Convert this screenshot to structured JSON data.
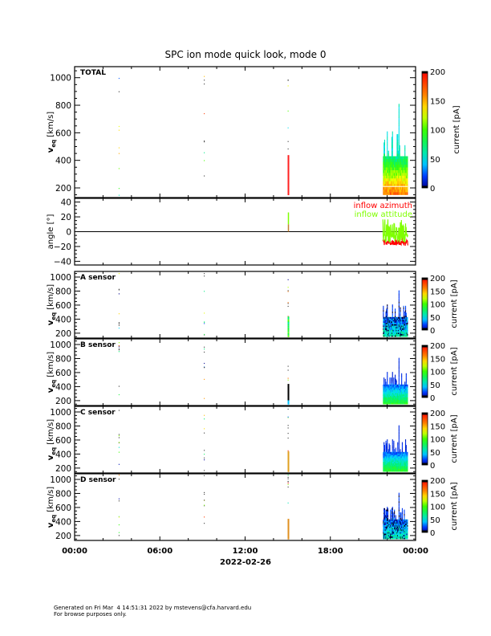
{
  "footer": {
    "line1": "Generated on Fri Mar  4 14:51:31 2022 by mstevens@cfa.harvard.edu",
    "line2": "For browse purposes only."
  },
  "chart_data": {
    "type": "heatmap",
    "title": "SPC ion mode quick look, mode 0",
    "xlabel": "2022-02-26",
    "x_ticks": [
      "00:00",
      "06:00",
      "12:00",
      "18:00",
      "00:00"
    ],
    "x_range_hours": [
      0,
      24
    ],
    "colorbar": {
      "label": "current [pA]",
      "ticks": [
        "0",
        "50",
        "100",
        "150",
        "200"
      ],
      "range": [
        0,
        200
      ]
    },
    "panels": [
      {
        "name": "TOTAL",
        "type": "heatmap",
        "ylabel_main": "v",
        "ylabel_sub": "eq",
        "ylabel_unit": "[km/s]",
        "y_ticks": [
          "200",
          "400",
          "600",
          "800",
          "1000"
        ],
        "ylim": [
          130,
          1080
        ],
        "scheme": "total",
        "events": [
          {
            "t_hours": 15.05,
            "vmin": 150,
            "vmax": 430,
            "level": 160
          },
          {
            "t_hours": 21.7,
            "t_end_hours": 23.5,
            "vmin": 150,
            "vmax": 430,
            "peak_vmax": 800
          }
        ]
      },
      {
        "name": "angle",
        "type": "line",
        "ylabel": "angle [°]",
        "y_ticks": [
          "-40",
          "-20",
          "0",
          "20",
          "40"
        ],
        "ylim": [
          -45,
          45
        ],
        "legend": [
          {
            "label": "inflow azimuth",
            "color": "#ff0000"
          },
          {
            "label": "inflow attitude",
            "color": "#7fff00"
          }
        ],
        "legend_position": "top-right"
      },
      {
        "name": "A sensor",
        "type": "heatmap",
        "ylabel_main": "v",
        "ylabel_sub": "eq",
        "ylabel_unit": "[km/s]",
        "y_ticks": [
          "200",
          "400",
          "600",
          "800",
          "1000"
        ],
        "ylim": [
          130,
          1080
        ],
        "scheme": "sensorA"
      },
      {
        "name": "B sensor",
        "type": "heatmap",
        "ylabel_main": "v",
        "ylabel_sub": "eq",
        "ylabel_unit": "[km/s]",
        "y_ticks": [
          "200",
          "400",
          "600",
          "800",
          "1000"
        ],
        "ylim": [
          130,
          1080
        ],
        "scheme": "sensorB"
      },
      {
        "name": "C sensor",
        "type": "heatmap",
        "ylabel_main": "v",
        "ylabel_sub": "eq",
        "ylabel_unit": "[km/s]",
        "y_ticks": [
          "200",
          "400",
          "600",
          "800",
          "1000"
        ],
        "ylim": [
          130,
          1080
        ],
        "scheme": "sensorC"
      },
      {
        "name": "D sensor",
        "type": "heatmap",
        "ylabel_main": "v",
        "ylabel_sub": "eq",
        "ylabel_unit": "[km/s]",
        "y_ticks": [
          "200",
          "400",
          "600",
          "800",
          "1000"
        ],
        "ylim": [
          130,
          1080
        ],
        "scheme": "sensorD"
      }
    ]
  }
}
